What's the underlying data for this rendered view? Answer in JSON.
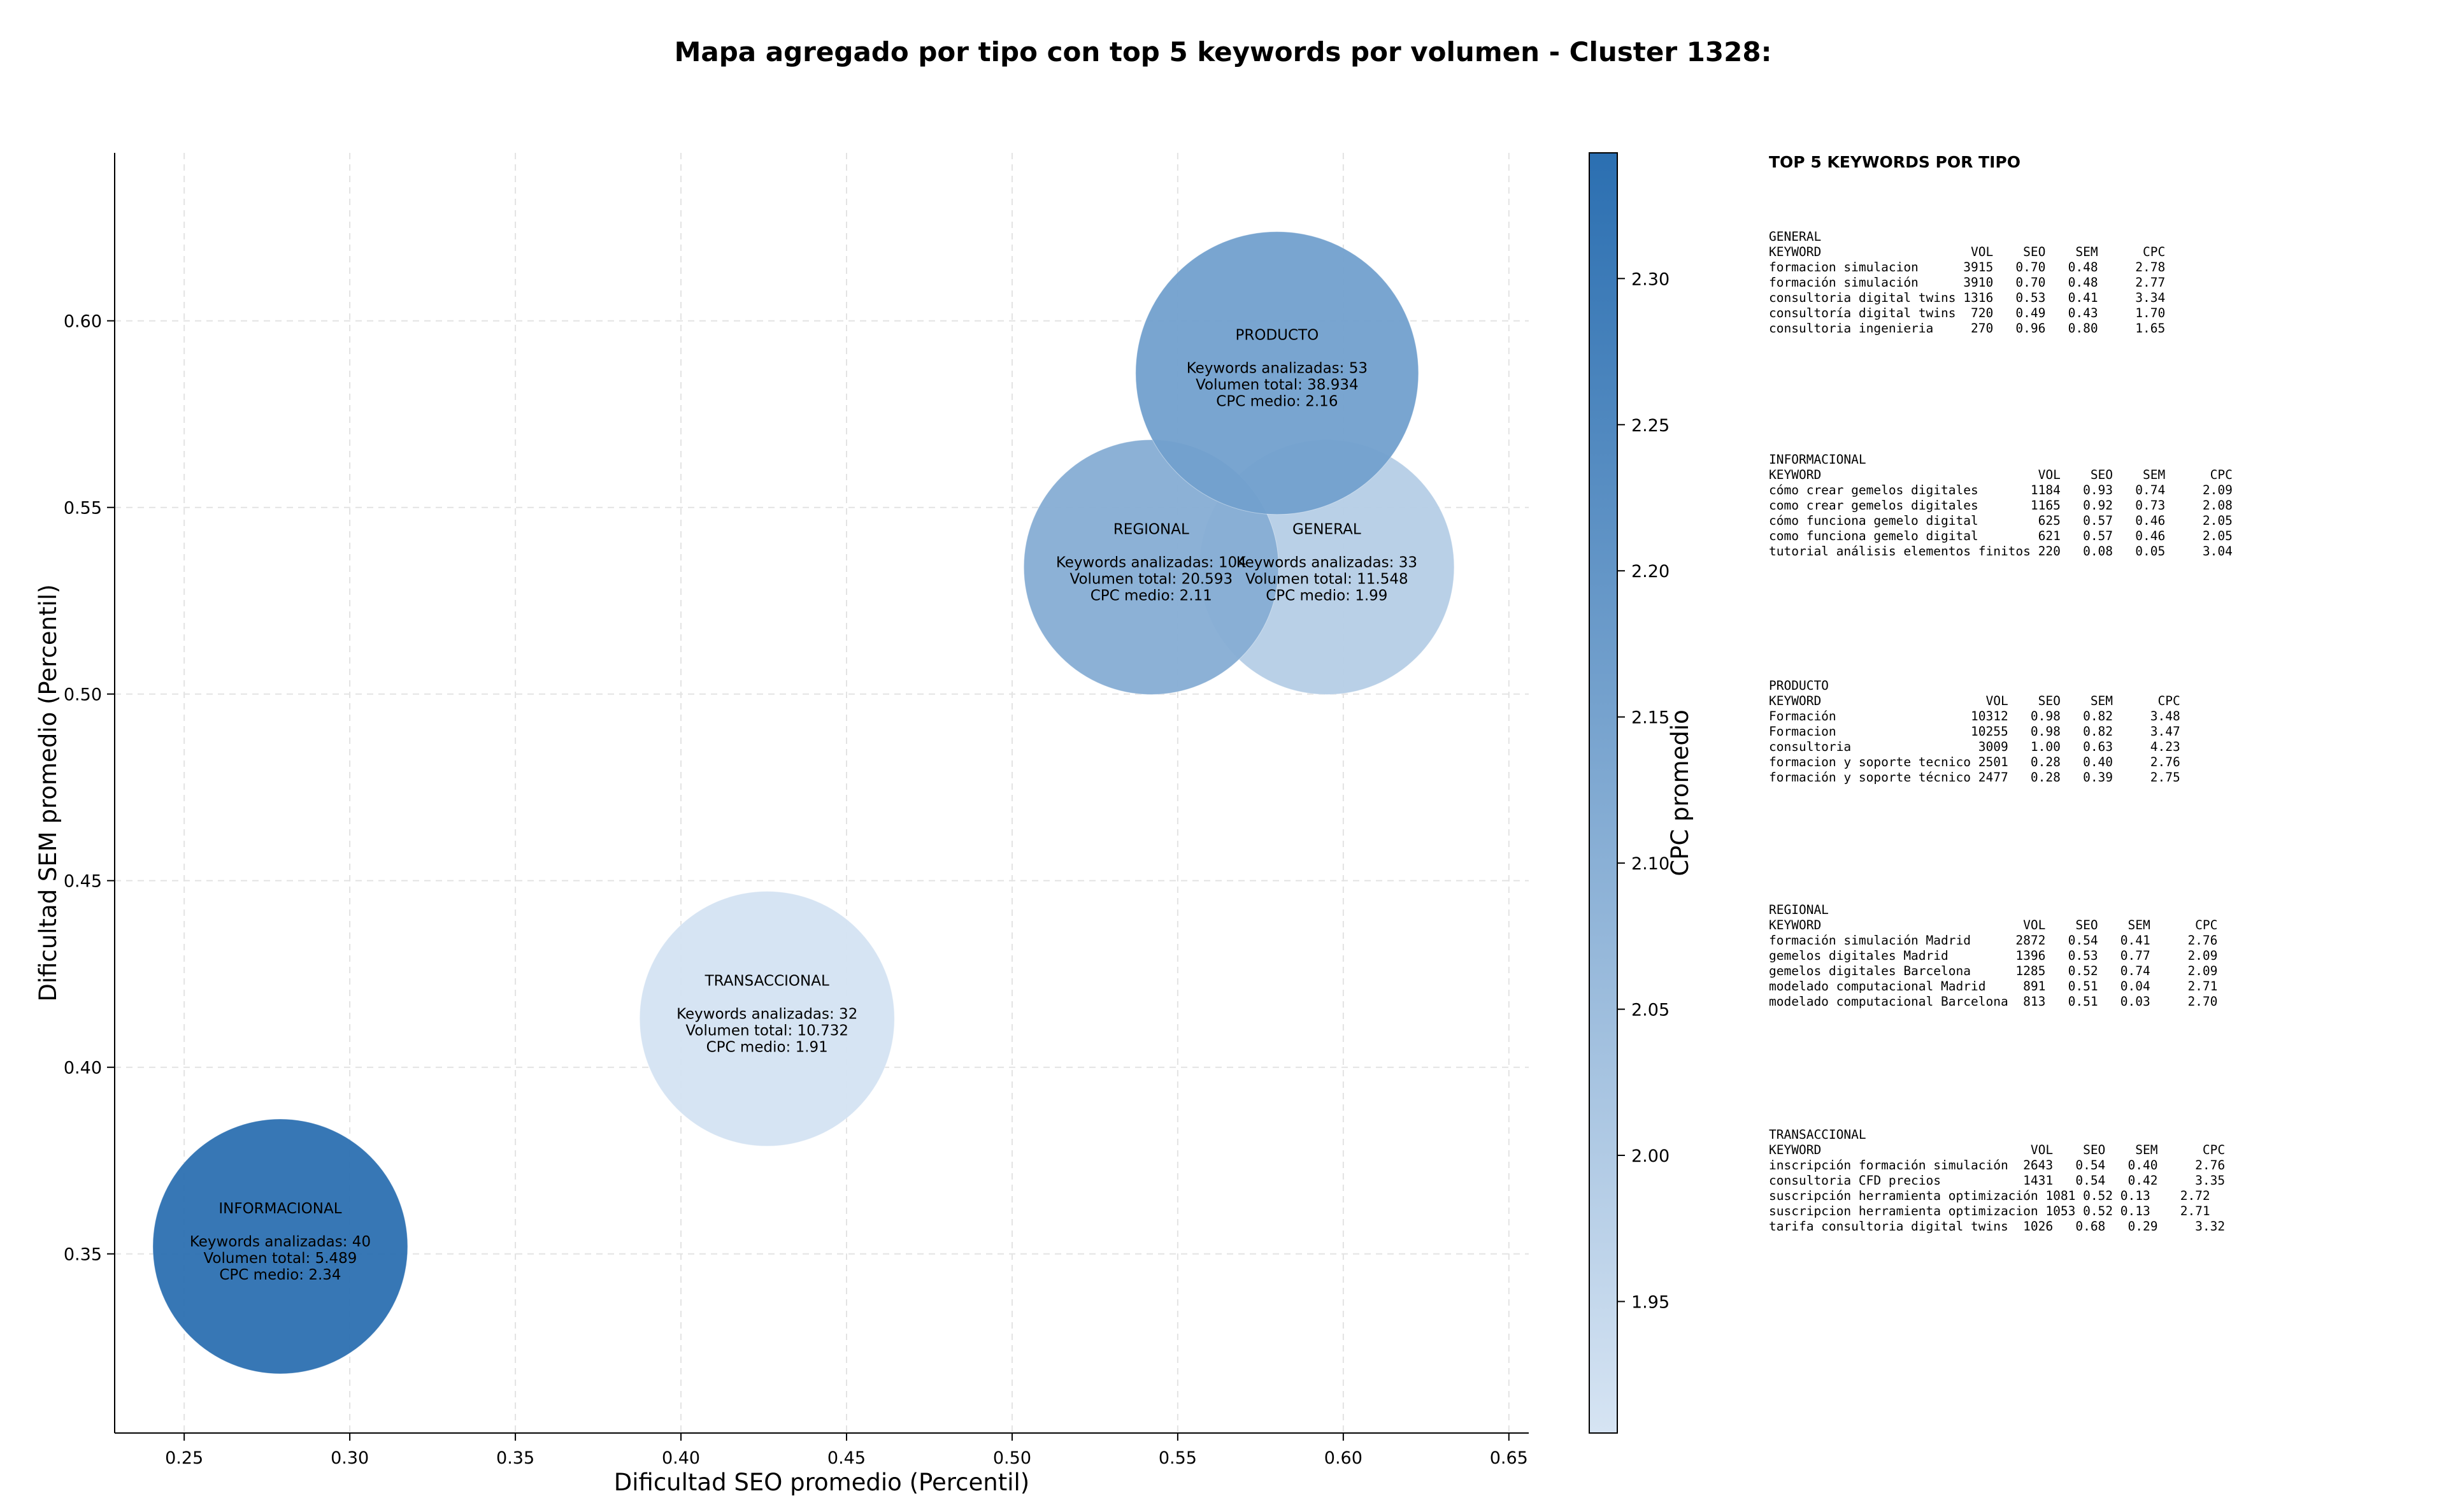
{
  "chart_data": {
    "type": "scatter",
    "title": "Mapa agregado por tipo con top 5 keywords por volumen - Cluster 1328:",
    "xlabel": "Dificultad SEO promedio (Percentil)",
    "ylabel": "Dificultad SEM promedio (Percentil)",
    "xlim": [
      0.229,
      0.656
    ],
    "ylim": [
      0.302,
      0.645
    ],
    "xticks": [
      "0.25",
      "0.30",
      "0.35",
      "0.40",
      "0.45",
      "0.50",
      "0.55",
      "0.60",
      "0.65"
    ],
    "yticks": [
      "0.35",
      "0.40",
      "0.45",
      "0.50",
      "0.55",
      "0.60"
    ],
    "grid": true,
    "colorbar": {
      "label": "CPC promedio",
      "min": 1.905,
      "max": 2.343,
      "ticks": [
        "1.95",
        "2.00",
        "2.05",
        "2.10",
        "2.15",
        "2.20",
        "2.25",
        "2.30"
      ],
      "colors": [
        "#d6e4f3",
        "#2b6fb1"
      ]
    },
    "points": [
      {
        "label": "GENERAL",
        "x": 0.595,
        "y": 0.534,
        "cpc": 1.99,
        "keywords": 33,
        "volume": 11548,
        "lines": [
          "Keywords analizadas: 33",
          "Volumen total: 11.548",
          "CPC medio: 1.99"
        ]
      },
      {
        "label": "REGIONAL",
        "x": 0.542,
        "y": 0.534,
        "cpc": 2.11,
        "keywords": 104,
        "volume": 20593,
        "lines": [
          "Keywords analizadas: 104",
          "Volumen total: 20.593",
          "CPC medio: 2.11"
        ]
      },
      {
        "label": "PRODUCTO",
        "x": 0.58,
        "y": 0.586,
        "cpc": 2.16,
        "keywords": 53,
        "volume": 38934,
        "lines": [
          "Keywords analizadas: 53",
          "Volumen total: 38.934",
          "CPC medio: 2.16"
        ]
      },
      {
        "label": "TRANSACCIONAL",
        "x": 0.426,
        "y": 0.413,
        "cpc": 1.91,
        "keywords": 32,
        "volume": 10732,
        "lines": [
          "Keywords analizadas: 32",
          "Volumen total: 10.732",
          "CPC medio: 1.91"
        ]
      },
      {
        "label": "INFORMACIONAL",
        "x": 0.279,
        "y": 0.352,
        "cpc": 2.34,
        "keywords": 40,
        "volume": 5489,
        "lines": [
          "Keywords analizadas: 40",
          "Volumen total: 5.489",
          "CPC medio: 2.34"
        ]
      }
    ]
  },
  "panel": {
    "title": "TOP 5 KEYWORDS POR TIPO",
    "blocks": [
      {
        "lines": [
          "GENERAL",
          "KEYWORD                    VOL    SEO    SEM      CPC",
          "formacion simulacion      3915   0.70   0.48     2.78",
          "formación simulación      3910   0.70   0.48     2.77",
          "consultoria digital twins 1316   0.53   0.41     3.34",
          "consultoría digital twins  720   0.49   0.43     1.70",
          "consultoria ingenieria     270   0.96   0.80     1.65"
        ]
      },
      {
        "lines": [
          "INFORMACIONAL",
          "KEYWORD                             VOL    SEO    SEM      CPC",
          "cómo crear gemelos digitales       1184   0.93   0.74     2.09",
          "como crear gemelos digitales       1165   0.92   0.73     2.08",
          "cómo funciona gemelo digital        625   0.57   0.46     2.05",
          "como funciona gemelo digital        621   0.57   0.46     2.05",
          "tutorial análisis elementos finitos 220   0.08   0.05     3.04"
        ]
      },
      {
        "lines": [
          "PRODUCTO",
          "KEYWORD                      VOL    SEO    SEM      CPC",
          "Formación                  10312   0.98   0.82     3.48",
          "Formacion                  10255   0.98   0.82     3.47",
          "consultoria                 3009   1.00   0.63     4.23",
          "formacion y soporte tecnico 2501   0.28   0.40     2.76",
          "formación y soporte técnico 2477   0.28   0.39     2.75"
        ]
      },
      {
        "lines": [
          "REGIONAL",
          "KEYWORD                           VOL    SEO    SEM      CPC",
          "formación simulación Madrid      2872   0.54   0.41     2.76",
          "gemelos digitales Madrid         1396   0.53   0.77     2.09",
          "gemelos digitales Barcelona      1285   0.52   0.74     2.09",
          "modelado computacional Madrid     891   0.51   0.04     2.71",
          "modelado computacional Barcelona  813   0.51   0.03     2.70"
        ]
      },
      {
        "lines": [
          "TRANSACCIONAL",
          "KEYWORD                            VOL    SEO    SEM      CPC",
          "inscripción formación simulación  2643   0.54   0.40     2.76",
          "consultoria CFD precios           1431   0.54   0.42     3.35",
          "suscripción herramienta optimización 1081 0.52 0.13    2.72",
          "suscripcion herramienta optimizacion 1053 0.52 0.13    2.71",
          "tarifa consultoria digital twins  1026   0.68   0.29     3.32"
        ]
      }
    ]
  }
}
